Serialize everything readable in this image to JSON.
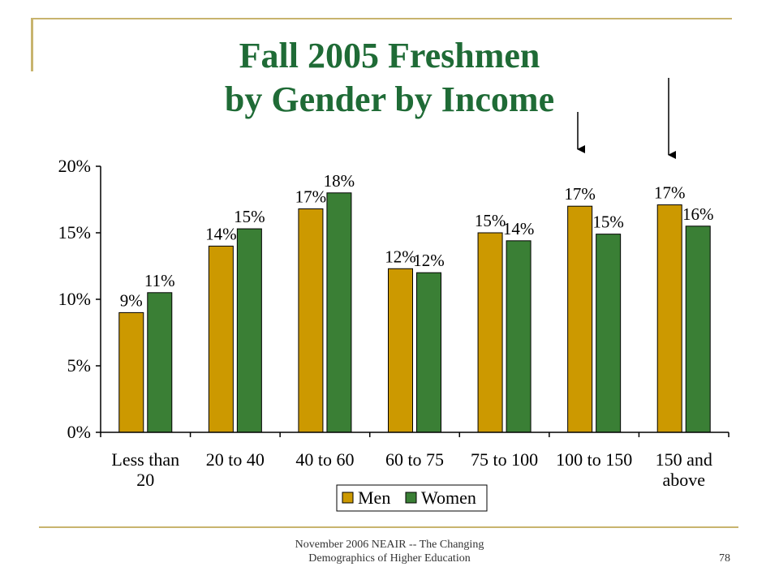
{
  "slide": {
    "title_line1": "Fall 2005 Freshmen",
    "title_line2": "by Gender by Income",
    "footer_line1": "November 2006 NEAIR -- The Changing",
    "footer_line2": "Demographics of Higher Education",
    "page_number": "78"
  },
  "colors": {
    "title": "#1f6b36",
    "men": "#cc9900",
    "women": "#3a7f35",
    "decor": "#c8b46e"
  },
  "chart_data": {
    "type": "bar",
    "title": "",
    "xlabel": "",
    "ylabel": "",
    "categories": [
      [
        "Less than",
        "20"
      ],
      [
        "20 to 40"
      ],
      [
        "40 to 60"
      ],
      [
        "60 to 75"
      ],
      [
        "75 to 100"
      ],
      [
        "100 to 150"
      ],
      [
        "150 and",
        "above"
      ]
    ],
    "series": [
      {
        "name": "Men",
        "values": [
          9.0,
          14.0,
          16.8,
          12.3,
          15.0,
          17.0,
          17.1
        ],
        "labels": [
          "9%",
          "14%",
          "17%",
          "12%",
          "15%",
          "17%",
          "17%"
        ]
      },
      {
        "name": "Women",
        "values": [
          10.5,
          15.3,
          18.0,
          12.0,
          14.4,
          14.9,
          15.5
        ],
        "labels": [
          "11%",
          "15%",
          "18%",
          "12%",
          "14%",
          "15%",
          "16%"
        ]
      }
    ],
    "yticks": [
      0,
      5,
      10,
      15,
      20
    ],
    "ytick_labels": [
      "0%",
      "5%",
      "10%",
      "15%",
      "20%"
    ],
    "ylim": [
      0,
      20
    ],
    "grid": false,
    "legend_position": "bottom-center",
    "annotations": [
      "arrow pointing down to 100 to 150",
      "arrow pointing down to 150 and above"
    ]
  }
}
